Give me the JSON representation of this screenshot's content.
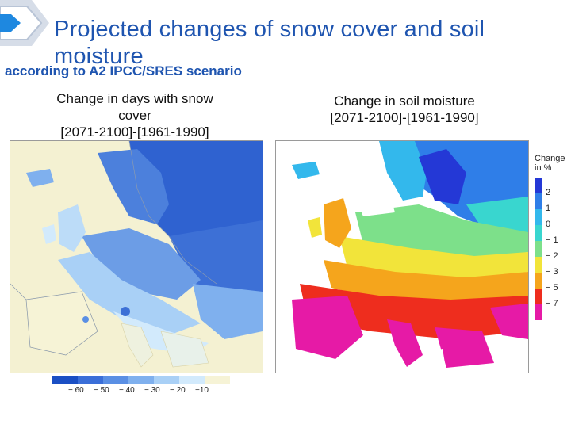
{
  "slide": {
    "title": "Projected changes of snow cover and soil moisture",
    "subtitle": "according to A2 IPCC/SRES scenario"
  },
  "left_panel": {
    "caption_line1": "Change in days with snow",
    "caption_line2": "cover",
    "caption_line3": "[2071-2100]-[1961-1990]",
    "legend": {
      "ticks": [
        "− 60",
        "− 50",
        "− 40",
        "− 30",
        "− 20",
        "−10"
      ],
      "colors": [
        "#1a4fc4",
        "#3a6ed8",
        "#5a8fe4",
        "#7fb0ee",
        "#a9d0f6",
        "#d2eafc",
        "#f6f3d6"
      ]
    }
  },
  "right_panel": {
    "caption_line1": "Change in soil moisture",
    "caption_line2": "[2071-2100]-[1961-1990]",
    "legend": {
      "title_line1": "Change",
      "title_line2": "in %",
      "ticks": [
        "2",
        "1",
        "0",
        "− 1",
        "− 2",
        "− 3",
        "− 5",
        "− 7"
      ],
      "colors": [
        "#2438d6",
        "#2f7ee8",
        "#33b8ec",
        "#39d6cf",
        "#7de08a",
        "#f2e43a",
        "#f5a51c",
        "#ee2d1e",
        "#e61aa6"
      ]
    }
  }
}
